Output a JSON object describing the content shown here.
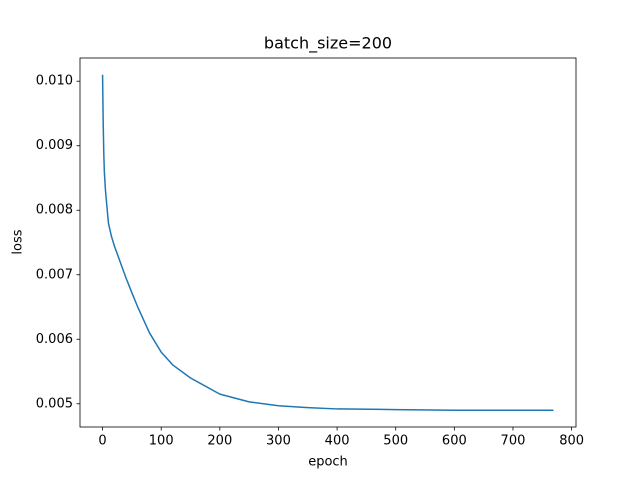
{
  "chart_data": {
    "type": "line",
    "title": "batch_size=200",
    "x_label": "epoch",
    "y_label": "loss",
    "x": [
      0,
      1,
      2,
      3,
      5,
      8,
      10,
      15,
      20,
      30,
      40,
      50,
      60,
      80,
      100,
      120,
      150,
      200,
      250,
      300,
      350,
      400,
      500,
      600,
      700,
      769
    ],
    "series": [
      {
        "color": "#1f77b4",
        "values": [
          0.0101,
          0.0094,
          0.0089,
          0.0086,
          0.0083,
          0.008,
          0.0078,
          0.0076,
          0.00745,
          0.0072,
          0.00695,
          0.00672,
          0.0065,
          0.0061,
          0.0058,
          0.0056,
          0.0054,
          0.00515,
          0.00503,
          0.00497,
          0.00494,
          0.00492,
          0.00491,
          0.0049,
          0.0049,
          0.0049
        ]
      }
    ],
    "xlim": [
      -38.5,
      807.5
    ],
    "ylim": [
      0.00464,
      0.01036
    ],
    "xticks": [
      0,
      100,
      200,
      300,
      400,
      500,
      600,
      700,
      800
    ],
    "yticks": [
      0.005,
      0.006,
      0.007,
      0.008,
      0.009,
      {
        "value": 0.01,
        "label": "0.010"
      }
    ],
    "grid": false
  }
}
